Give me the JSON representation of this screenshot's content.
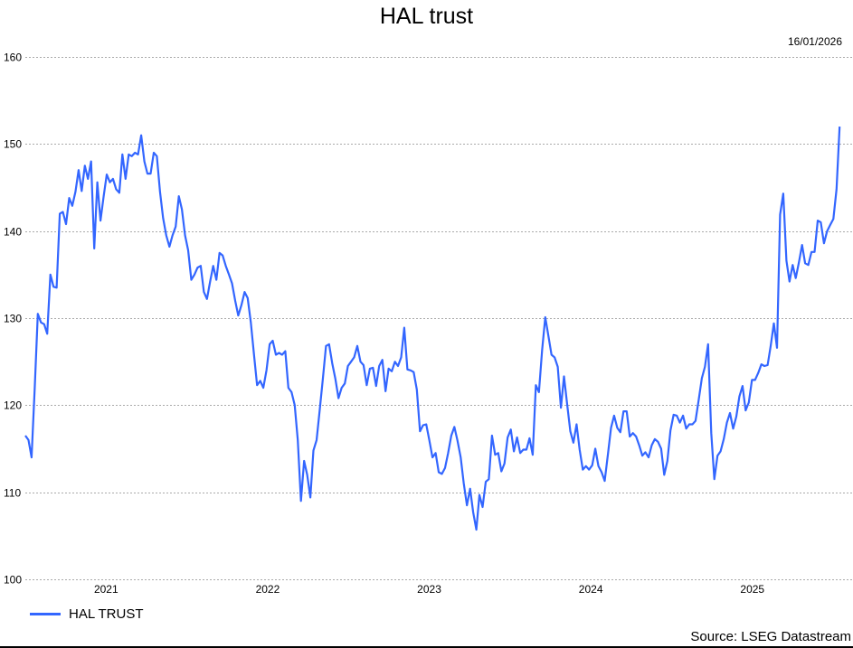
{
  "chart_data": {
    "type": "line",
    "title": "HAL trust",
    "date_label": "16/01/2026",
    "source": "Source: LSEG Datastream",
    "xlabel": "",
    "ylabel": "",
    "x_range": [
      2021.0,
      2026.05
    ],
    "ylim": [
      100,
      160
    ],
    "yticks": [
      100,
      110,
      120,
      130,
      140,
      150,
      160
    ],
    "xticks": [
      "2021",
      "2022",
      "2023",
      "2024",
      "2025"
    ],
    "grid": true,
    "legend_position": "bottom-left",
    "color": "#3366ff",
    "series": [
      {
        "name": "HAL TRUST",
        "frequency": "weekly",
        "values": [
          116.5,
          116,
          114,
          122,
          130.5,
          129.5,
          129.3,
          128.2,
          135,
          133.6,
          133.5,
          142,
          142.2,
          140.8,
          143.8,
          142.9,
          144.5,
          147,
          144.6,
          147.5,
          146,
          148,
          138,
          145.6,
          141.2,
          144,
          146.5,
          145.6,
          146,
          144.8,
          144.4,
          148.8,
          146,
          148.8,
          148.6,
          149,
          148.8,
          151,
          148,
          146.6,
          146.6,
          149,
          148.6,
          144.5,
          141.5,
          139.5,
          138.2,
          139.5,
          140.5,
          144,
          142.5,
          139.5,
          137.8,
          134.4,
          135,
          135.8,
          136,
          133,
          132.2,
          134.2,
          136,
          134.4,
          137.5,
          137.2,
          136,
          135,
          134,
          132,
          130.3,
          131.5,
          133,
          132.3,
          129.5,
          125.8,
          122.3,
          122.8,
          122,
          124,
          127,
          127.4,
          125.8,
          126,
          125.8,
          126.2,
          122,
          121.5,
          120,
          116,
          109,
          113.6,
          112,
          109.4,
          114.8,
          116,
          119.5,
          123,
          126.8,
          127,
          124.8,
          123,
          120.8,
          122,
          122.5,
          124.5,
          125,
          125.5,
          126.8,
          125,
          124.6,
          122.3,
          124.2,
          124.3,
          122.2,
          124.5,
          125.2,
          121.6,
          124.2,
          123.9,
          125,
          124.5,
          125.5,
          128.9,
          124.1,
          124,
          123.8,
          121.8,
          117,
          117.7,
          117.8,
          116,
          114,
          114.5,
          112.3,
          112.1,
          112.8,
          114.5,
          116.5,
          117.5,
          115.9,
          114,
          111,
          108.5,
          110.4,
          107.7,
          105.7,
          109.7,
          108.3,
          111.2,
          111.5,
          116.5,
          114.3,
          114.5,
          112.4,
          113.3,
          116.3,
          117.2,
          114.7,
          116.3,
          114.5,
          114.9,
          114.9,
          116.2,
          114.3,
          122.3,
          121.5,
          126.3,
          130.1,
          128,
          125.8,
          125.5,
          124.4,
          119.7,
          123.3,
          120.1,
          117,
          115.7,
          117.8,
          114.9,
          112.6,
          113,
          112.6,
          113.1,
          115,
          113,
          112.3,
          111.3,
          114.3,
          117.4,
          118.8,
          117.4,
          116.9,
          119.3,
          119.3,
          116.4,
          116.8,
          116.4,
          115.4,
          114.2,
          114.6,
          114,
          115.4,
          116.1,
          115.8,
          115,
          112,
          113.6,
          117.1,
          118.9,
          118.8,
          118,
          118.8,
          117.3,
          117.8,
          117.8,
          118.2,
          120.6,
          123.1,
          124.4,
          127,
          116.8,
          111.5,
          114.2,
          114.7,
          116.1,
          118,
          119.1,
          117.3,
          118.7,
          121,
          122.2,
          119.4,
          120.3,
          122.9,
          122.9,
          123.7,
          124.7,
          124.5,
          124.6,
          126.8,
          129.4,
          126.6,
          141.9,
          144.3,
          136.6,
          134.2,
          136.1,
          134.6,
          136.4,
          138.4,
          136.3,
          136.1,
          137.6,
          137.6,
          141.2,
          141,
          138.6,
          140,
          140.7,
          141.4,
          144.8,
          152
        ]
      }
    ]
  }
}
